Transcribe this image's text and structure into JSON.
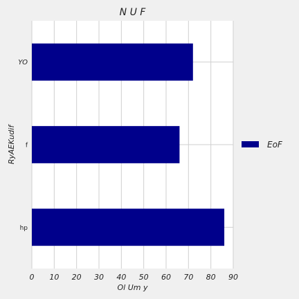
{
  "chart_data": {
    "type": "bar",
    "orientation": "horizontal",
    "title": "N U F",
    "xlabel": "Ol Um y",
    "ylabel": "RyAEKudif",
    "categories": [
      "YO",
      "f",
      "hp"
    ],
    "series": [
      {
        "name": "EoF",
        "values": [
          72,
          66,
          86
        ],
        "color": "#00008b"
      }
    ],
    "xlim": [
      0,
      90
    ],
    "xticks": [
      0,
      10,
      20,
      30,
      40,
      50,
      60,
      70,
      80,
      90
    ],
    "grid": true,
    "legend_position": "right"
  }
}
